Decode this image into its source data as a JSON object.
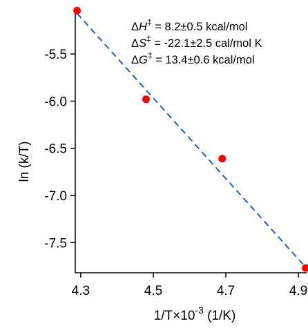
{
  "chart_data": {
    "type": "scatter",
    "xlabel": {
      "base": "1/T×10",
      "exponent": "-3",
      "unit": " (1/K)"
    },
    "ylabel": "ln (k/T)",
    "xlim": [
      4.285,
      4.915
    ],
    "ylim": [
      -7.82,
      -5.03
    ],
    "x_ticks": [
      4.3,
      4.5,
      4.7,
      4.9
    ],
    "x_tick_labels": [
      "4.3",
      "4.5",
      "4.7",
      "4.9"
    ],
    "y_ticks": [
      -5.5,
      -6.0,
      -6.5,
      -7.0,
      -7.5
    ],
    "y_tick_labels": [
      "-5.5",
      "-6.0",
      "-6.5",
      "-7.0",
      "-7.5"
    ],
    "grid": false,
    "colors": {
      "points": "#ff0000",
      "fit": "#1f5bd6",
      "axis": "#000000"
    },
    "points": [
      {
        "x": 4.29,
        "y": -5.04
      },
      {
        "x": 4.48,
        "y": -5.98
      },
      {
        "x": 4.69,
        "y": -6.61
      },
      {
        "x": 4.92,
        "y": -7.77
      }
    ],
    "fit_line": {
      "style": "dashed",
      "from": {
        "x": 4.29,
        "y": -5.07
      },
      "to": {
        "x": 4.915,
        "y": -7.74
      }
    },
    "annotations": [
      {
        "symbol": "H",
        "superscript": "‡",
        "text": " = 8.2±0.5 kcal/mol"
      },
      {
        "symbol": "S",
        "superscript": "‡",
        "text": " = -22.1±2.5 cal/mol K"
      },
      {
        "symbol": "G",
        "superscript": "‡",
        "text": " = 13.4±0.6 kcal/mol"
      }
    ]
  }
}
